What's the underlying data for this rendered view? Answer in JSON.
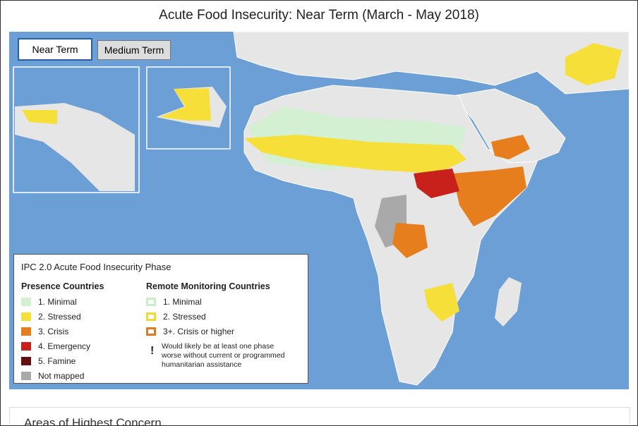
{
  "title": "Acute Food Insecurity: Near Term (March - May 2018)",
  "buttons": [
    "Near Term",
    "Medium Term"
  ],
  "legend": {
    "title": "IPC 2.0 Acute Food Insecurity Phase",
    "presence": {
      "heading": "Presence Countries",
      "items": [
        {
          "label": "1. Minimal",
          "color": "#d3f0d3"
        },
        {
          "label": "2. Stressed",
          "color": "#f7df3a"
        },
        {
          "label": "3. Crisis",
          "color": "#e67e1e"
        },
        {
          "label": "4. Emergency",
          "color": "#c8201a"
        },
        {
          "label": "5. Famine",
          "color": "#651010"
        },
        {
          "label": "Not mapped",
          "color": "#a9a9a9"
        }
      ]
    },
    "remote": {
      "heading": "Remote Monitoring Countries",
      "items": [
        {
          "label": "1. Minimal",
          "color": "#c8eec8"
        },
        {
          "label": "2. Stressed",
          "color": "#f2d92a"
        },
        {
          "label": "3+. Crisis or higher",
          "color": "#e07a20"
        }
      ]
    },
    "note": {
      "symbol": "!",
      "lines": [
        "Would likely be at least one phase",
        "worse without current or programmed",
        "humanitarian assistance"
      ]
    }
  },
  "section": {
    "title": "Areas of Highest Concern"
  }
}
